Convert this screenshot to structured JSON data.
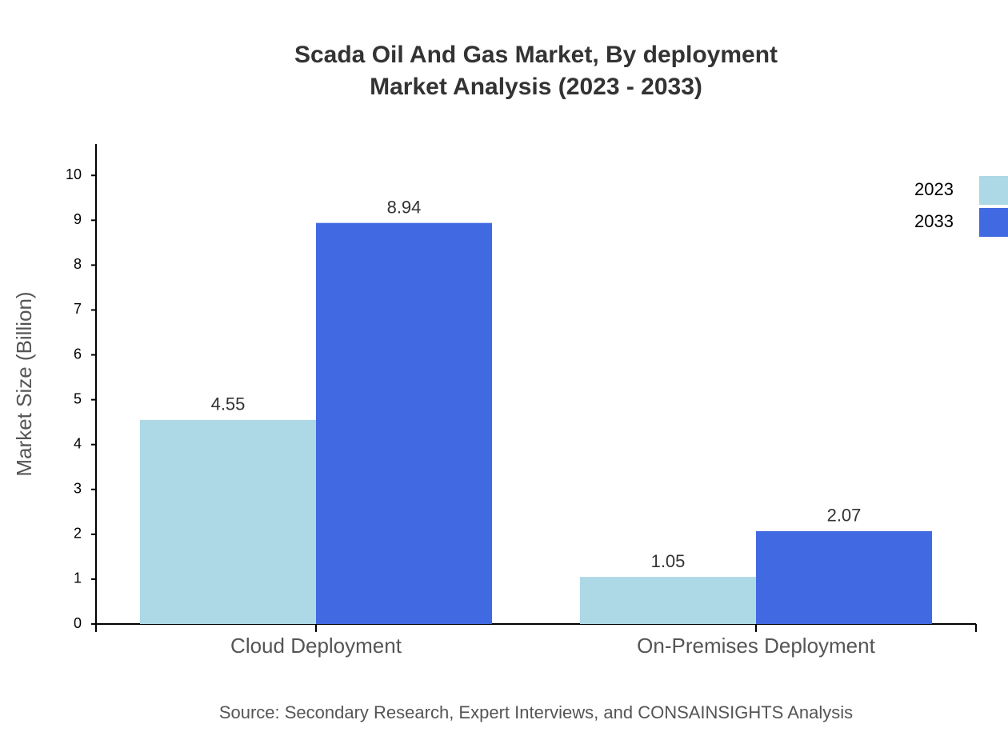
{
  "chart_data": {
    "type": "bar",
    "title": "Scada Oil And Gas Market, By deployment",
    "subtitle": "Market Analysis (2023 - 2033)",
    "y_label": "Market Size (Billion)",
    "source": "Source: Secondary Research, Expert Interviews, and CONSAINSIGHTS Analysis",
    "categories": [
      "Cloud Deployment",
      "On-Premises Deployment"
    ],
    "series": [
      {
        "name": "2023",
        "color": "#add8e6",
        "values": [
          4.55,
          1.05
        ]
      },
      {
        "name": "2033",
        "color": "#4169e1",
        "values": [
          8.94,
          2.07
        ]
      }
    ],
    "ylim": [
      0,
      10.7
    ],
    "yticks": [
      0,
      1,
      2,
      3,
      4,
      5,
      6,
      7,
      8,
      9,
      10
    ],
    "legend": "top-right",
    "grid": false
  }
}
